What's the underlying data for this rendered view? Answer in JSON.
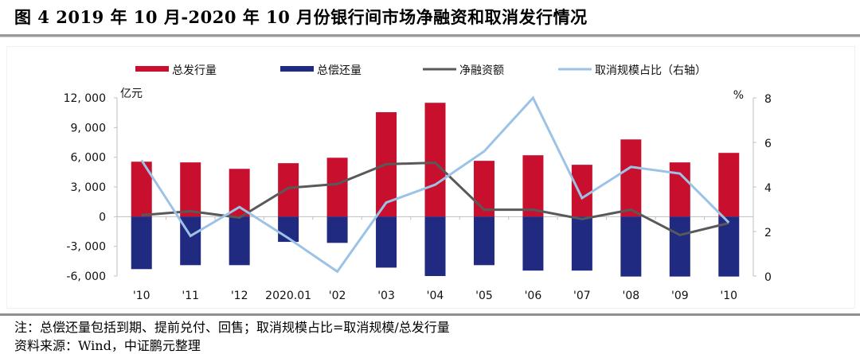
{
  "header": {
    "figure_title": "图 4   2019 年 10 月-2020 年 10 月份银行间市场净融资和取消发行情况"
  },
  "footer": {
    "note": "注：总偿还量包括到期、提前兑付、回售；取消规模占比=取消规模/总发行量",
    "source": "资料来源：Wind，中证鹏元整理"
  },
  "chart_data": {
    "type": "bar",
    "title": "2019 年 10 月-2020 年 10 月份银行间市场净融资和取消发行情况",
    "categories": [
      "'10",
      "'11",
      "'12",
      "2020.01",
      "'02",
      "'03",
      "'04",
      "'05",
      "'06",
      "'07",
      "'08",
      "'09",
      "'10"
    ],
    "ylabel": "亿元",
    "y2label": "%",
    "ylim": [
      -6000,
      12000
    ],
    "yticks": [
      12000,
      9000,
      6000,
      3000,
      0,
      -3000,
      -6000
    ],
    "ytick_labels": [
      "12, 000",
      "9, 000",
      "6, 000",
      "3, 000",
      "0",
      "-3, 000",
      "-6, 000"
    ],
    "y2lim": [
      0,
      8
    ],
    "y2ticks": [
      8,
      6,
      4,
      2,
      0
    ],
    "y2tick_labels": [
      "8",
      "6",
      "4",
      "2",
      "0"
    ],
    "grid": false,
    "legend_position": "top",
    "series": [
      {
        "name": "总发行量",
        "kind": "bar",
        "axis": "left",
        "color": "#c8102e",
        "values": [
          5550,
          5480,
          4830,
          5400,
          5950,
          10550,
          11500,
          5640,
          6200,
          5240,
          7800,
          5480,
          6440
        ]
      },
      {
        "name": "总偿还量",
        "kind": "bar",
        "axis": "left",
        "color": "#1f2a80",
        "values": [
          -5300,
          -4900,
          -4900,
          -2550,
          -2650,
          -5150,
          -6000,
          -4900,
          -5450,
          -5450,
          -6050,
          -6050,
          -6050
        ]
      },
      {
        "name": "净融资额",
        "kind": "line",
        "axis": "left",
        "color": "#595959",
        "values": [
          150,
          550,
          -100,
          2900,
          3300,
          5300,
          5450,
          700,
          700,
          -250,
          700,
          -1850,
          -650
        ]
      },
      {
        "name": "取消规模占比（右轴）",
        "kind": "line",
        "axis": "right",
        "color": "#9cc3e6",
        "values": [
          5.2,
          1.8,
          3.1,
          1.7,
          0.2,
          3.3,
          4.1,
          5.6,
          8.0,
          3.5,
          4.9,
          4.6,
          2.4
        ]
      }
    ]
  }
}
